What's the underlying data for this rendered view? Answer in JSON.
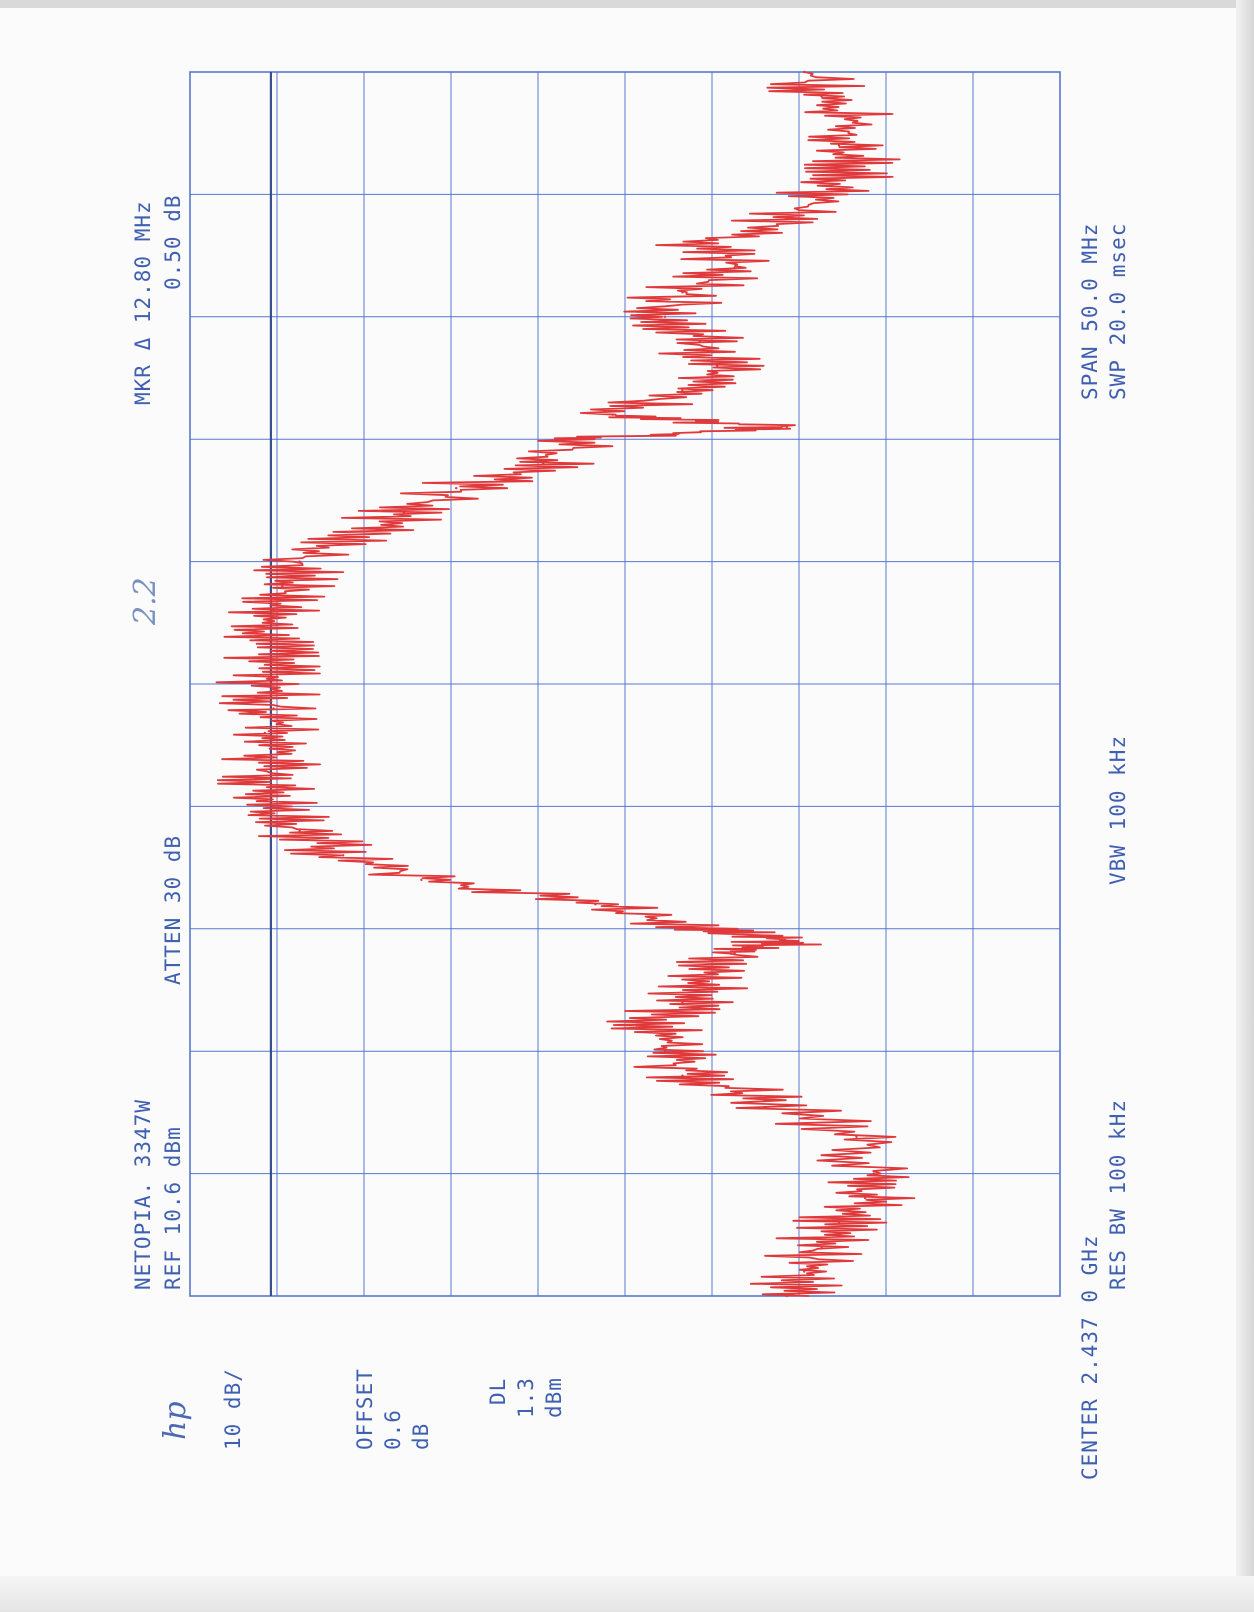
{
  "header": {
    "logo": "hp",
    "handwritten_note": "2.2",
    "device_name": "NETOPIA. 3347W",
    "ref_level": "REF 10.6 dBm",
    "attenuation": "ATTEN 30 dB",
    "marker_freq": "MKR Δ 12.80 MHz",
    "marker_level": "0.50 dB"
  },
  "side": {
    "scale": "10 dB/",
    "offset_label": "OFFSET",
    "offset_value": "0.6",
    "offset_unit": "dB",
    "dl_label": "DL",
    "dl_value": "1.3",
    "dl_unit": "dBm"
  },
  "footer": {
    "center": "CENTER 2.437 0 GHz",
    "res_bw": "RES BW 100 kHz",
    "vbw": "VBW 100 kHz",
    "span": "SPAN 50.0 MHz",
    "sweep": "SWP 20.0 msec"
  },
  "colors": {
    "grid": "#5877cf",
    "trace": "#e0393b",
    "text": "#3f5fb0"
  },
  "chart_data": {
    "type": "line",
    "orientation": "rotated-90-ccw",
    "xlabel": "",
    "ylabel": "",
    "x_range_mhz": [
      2412.0,
      2462.0
    ],
    "y_range_dbm": [
      -89.4,
      10.6
    ],
    "grid": true,
    "divisions": {
      "x": 10,
      "y": 10
    },
    "display_line_dbm": 1.3,
    "series": [
      {
        "x": [
          2412.0,
          2413.0,
          2414.0,
          2415.0,
          2416.0,
          2417.0,
          2418.5,
          2420.0,
          2421.0,
          2422.0,
          2423.0,
          2424.0,
          2425.0,
          2426.0,
          2426.5,
          2427.0,
          2428.0,
          2429.0,
          2430.0,
          2431.0,
          2432.0,
          2433.0,
          2434.0,
          2435.0,
          2436.0,
          2437.0,
          2438.0,
          2439.0,
          2440.0,
          2441.0,
          2442.0,
          2443.0,
          2444.0,
          2445.0,
          2446.0,
          2447.0,
          2447.5,
          2448.0,
          2449.0,
          2450.0,
          2451.0,
          2452.0,
          2453.0,
          2454.0,
          2455.0,
          2456.0,
          2457.0,
          2458.0,
          2459.0,
          2460.0,
          2461.0,
          2462.0
        ],
        "y": [
          -58,
          -60,
          -62,
          -64,
          -67,
          -68,
          -66,
          -56,
          -46,
          -44,
          -42,
          -46,
          -50,
          -52,
          -58,
          -48,
          -36,
          -16,
          -7,
          -2,
          1,
          2,
          1,
          2,
          1,
          2,
          1,
          2,
          1,
          0,
          -2,
          -8,
          -14,
          -20,
          -30,
          -34,
          -58,
          -38,
          -46,
          -50,
          -48,
          -44,
          -46,
          -52,
          -48,
          -58,
          -62,
          -66,
          -64,
          -66,
          -62,
          -60
        ]
      }
    ]
  }
}
